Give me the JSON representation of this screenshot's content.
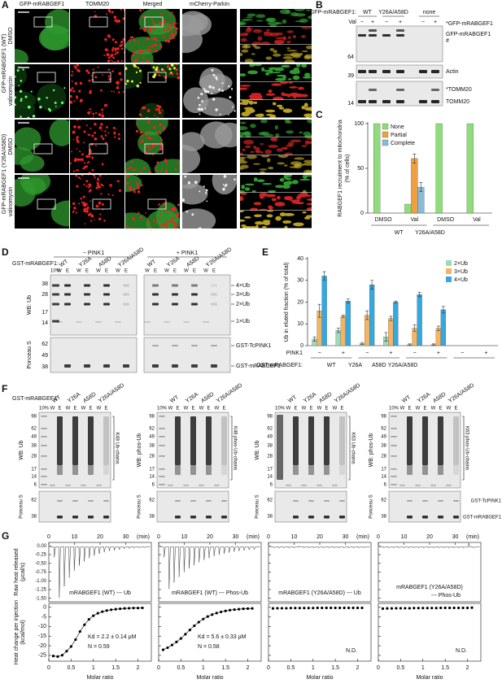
{
  "panel_labels": [
    "A",
    "B",
    "C",
    "D",
    "E",
    "F",
    "G"
  ],
  "panel_a": {
    "columns": [
      "GFP-mRABGEF1",
      "TOMM20",
      "Merged",
      "mCherry-Parkin"
    ],
    "treatments": [
      "DMSO",
      "valinomycin",
      "DMSO",
      "valinomycin"
    ],
    "groups": [
      "GFP-mRABGEF1 (WT)",
      "GFP-mRABGEF1 (Y26A/A58D)"
    ]
  },
  "panel_b": {
    "construct_label": "GFP-mRABGEF1:",
    "lanes": [
      "WT",
      "Y26A/A58D",
      "none"
    ],
    "treatment_label": "Val",
    "signs": [
      "−",
      "+",
      "−",
      "+",
      "−",
      "+"
    ],
    "markers": [
      64,
      39,
      14
    ],
    "bands": [
      "*GFP-mRABGEF1",
      "GFP-mRABGEF1",
      "#",
      "Actin",
      "*TOMM20",
      "TOMM20"
    ]
  },
  "chart_data": [
    {
      "type": "bar",
      "ylabel": [
        "RABGEF1 recruitment to mitochondria",
        "(% of cells)"
      ],
      "categories": [
        "DMSO",
        "Val",
        "DMSO",
        "Val"
      ],
      "groups": [
        "WT",
        "Y26A/A58D"
      ],
      "ylim": [
        0,
        100
      ],
      "yticks": [
        0,
        50,
        100
      ],
      "legend": "upper left",
      "series": [
        {
          "name": "None",
          "color": "#8fdc7b",
          "values": [
            100,
            10,
            100,
            100
          ],
          "errors": [
            null,
            null,
            null,
            null
          ]
        },
        {
          "name": "Partial",
          "color": "#f0a040",
          "values": [
            0,
            61,
            0,
            0
          ],
          "errors": [
            null,
            5,
            null,
            null
          ]
        },
        {
          "name": "Complete",
          "color": "#86bcd8",
          "values": [
            0,
            29,
            0,
            0
          ],
          "errors": [
            null,
            5,
            null,
            null
          ]
        }
      ]
    },
    {
      "type": "bar",
      "ylabel": "Ub in eluted fraction (% of total)",
      "treatment_label": "PINK1",
      "construct_label": "GST-mRABGEF1:",
      "categories": [
        "−",
        "+",
        "−",
        "+",
        "−",
        "+",
        "−",
        "+"
      ],
      "groups": [
        "WT",
        "Y26A",
        "A58D",
        "Y26A/A58D"
      ],
      "ylim": [
        0,
        40
      ],
      "yticks": [
        0,
        10,
        20,
        30,
        40
      ],
      "legend": "upper right",
      "series": [
        {
          "name": "2×Ub",
          "color": "#9ed9b8",
          "values": [
            3,
            7,
            1,
            4,
            0.5,
            0.5,
            0,
            0
          ],
          "errors": [
            1,
            1,
            0.5,
            2,
            0.3,
            0.3,
            null,
            null
          ]
        },
        {
          "name": "3×Ub",
          "color": "#f4b563",
          "values": [
            16,
            13.5,
            14,
            12.5,
            8,
            8,
            0,
            0
          ],
          "errors": [
            3,
            0.5,
            2,
            1,
            1.5,
            1,
            null,
            null
          ]
        },
        {
          "name": "4×Ub",
          "color": "#35a8e0",
          "values": [
            32,
            20.5,
            28,
            20,
            23.5,
            16.5,
            0,
            0
          ],
          "errors": [
            2,
            1,
            2,
            0.5,
            1,
            1.5,
            null,
            null
          ]
        }
      ]
    },
    {
      "type": "scatter",
      "title": [
        "mRABGEF1 (WT) --- Ub"
      ],
      "results": [
        "Kd = 2.2 ± 0.14 μM",
        "N = 0.59"
      ],
      "x": [
        0.1,
        0.2,
        0.3,
        0.4,
        0.5,
        0.6,
        0.7,
        0.8,
        0.9,
        1.0,
        1.1,
        1.2,
        1.3,
        1.4,
        1.5,
        1.6,
        1.7,
        1.8,
        1.9,
        2.0,
        2.1
      ],
      "values": [
        -25.3,
        -25.6,
        -24.9,
        -22.8,
        -20.4,
        -16.8,
        -12.6,
        -9.1,
        -6.3,
        -4.4,
        -3.1,
        -2.3,
        -1.7,
        -1.3,
        -1.0,
        -0.8,
        -0.6,
        -0.5,
        -0.4,
        -0.4,
        -0.3
      ],
      "xlim": [
        0,
        2.3
      ],
      "ylim": [
        -28,
        2
      ],
      "xticks": [
        0,
        0.5,
        1,
        1.5,
        2
      ],
      "yticks": [
        0,
        -5,
        -10,
        -15,
        -20,
        -25
      ]
    },
    {
      "type": "scatter",
      "title": [
        "mRABGEF1 (WT) --- Phos-Ub"
      ],
      "results": [
        "Kd = 5.6 ± 0.33 μM",
        "N = 0.58"
      ],
      "x": [
        0.1,
        0.2,
        0.3,
        0.4,
        0.5,
        0.6,
        0.7,
        0.8,
        0.9,
        1.0,
        1.1,
        1.2,
        1.3,
        1.4,
        1.5,
        1.6,
        1.7,
        1.8,
        1.9,
        2.0,
        2.1
      ],
      "values": [
        -22.1,
        -21.0,
        -19.6,
        -18.0,
        -16.2,
        -14.0,
        -11.8,
        -9.6,
        -7.7,
        -6.1,
        -4.8,
        -3.8,
        -3.0,
        -2.4,
        -1.9,
        -1.5,
        -1.2,
        -1.0,
        -0.8,
        -0.7,
        -0.6
      ],
      "xlim": [
        0,
        2.3
      ],
      "ylim": [
        -28,
        2
      ],
      "xticks": [
        0,
        0.5,
        1,
        1.5,
        2
      ],
      "yticks": [
        0,
        -5,
        -10,
        -15,
        -20,
        -25
      ]
    },
    {
      "type": "scatter",
      "title": [
        "mRABGEF1 (Y26A/A58D) --- Ub"
      ],
      "results": [
        "N.D."
      ],
      "x": [
        0.1,
        0.2,
        0.3,
        0.4,
        0.5,
        0.6,
        0.7,
        0.8,
        0.9,
        1.0,
        1.1,
        1.2,
        1.3,
        1.4,
        1.5,
        1.6,
        1.7,
        1.8,
        1.9,
        2.0,
        2.1
      ],
      "values": [
        -0.6,
        -0.5,
        -0.5,
        -0.5,
        -0.4,
        -0.4,
        -0.4,
        -0.4,
        -0.4,
        -0.4,
        -0.3,
        -0.3,
        -0.3,
        -0.3,
        -0.3,
        -0.3,
        -0.3,
        -0.3,
        -0.3,
        -0.3,
        -0.3
      ],
      "xlim": [
        0,
        2.3
      ],
      "ylim": [
        -28,
        2
      ],
      "xticks": [
        0,
        0.5,
        1,
        1.5,
        2
      ],
      "yticks": [
        0,
        -5,
        -10,
        -15,
        -20,
        -25
      ]
    },
    {
      "type": "scatter",
      "title": [
        "mRABGEF1 (Y26A/A58D)",
        "--- Phos-Ub"
      ],
      "results": [
        "N.D."
      ],
      "x": [
        0.1,
        0.2,
        0.3,
        0.4,
        0.5,
        0.6,
        0.7,
        0.8,
        0.9,
        1.0,
        1.1,
        1.2,
        1.3,
        1.4,
        1.5,
        1.6,
        1.7,
        1.8,
        1.9,
        2.0,
        2.1
      ],
      "values": [
        -0.7,
        -0.6,
        -0.6,
        -0.5,
        -0.5,
        -0.5,
        -0.5,
        -0.4,
        -0.4,
        -0.4,
        -0.4,
        -0.4,
        -0.4,
        -0.3,
        -0.3,
        -0.3,
        -0.3,
        -0.3,
        -0.3,
        -0.3,
        -0.2
      ],
      "xlim": [
        0,
        2.3
      ],
      "ylim": [
        -28,
        2
      ],
      "xticks": [
        0,
        0.5,
        1,
        1.5,
        2
      ],
      "yticks": [
        0,
        -5,
        -10,
        -15,
        -20,
        -25
      ]
    }
  ],
  "panel_d": {
    "pink1_labels": [
      "− PINK1",
      "+ PINK1"
    ],
    "construct_label": "GST-mRABGEF1:",
    "load_label": "10%",
    "lanes": [
      "WT",
      "Y26A",
      "A58D",
      "Y26A/A58D"
    ],
    "fractions": [
      "W",
      "E"
    ],
    "row_labels": [
      "WB: Ub",
      "Ponceau S"
    ],
    "markers_top": [
      38,
      28,
      17,
      14
    ],
    "markers_bottom": [
      62,
      49,
      38
    ],
    "bands": [
      "4×Ub",
      "3×Ub",
      "2×Ub",
      "1×Ub",
      "GST-TcPINK1",
      "GST-mRABGEF1"
    ]
  },
  "panel_f": {
    "construct_label": "GST-mRABGEF1:",
    "load_label": "10%",
    "lanes": [
      "WT",
      "Y26A",
      "A58D",
      "Y26A/A58D"
    ],
    "fractions": [
      "W",
      "E"
    ],
    "wb_labels": [
      "WB: Ub",
      "WB: phos-Ub",
      "WB: Ub",
      "WB: phos-Ub"
    ],
    "chain_labels": [
      "K48 Ub-chains",
      "K48 phos-Ub-chains",
      "K63 Ub-chains",
      "K63 phos-Ub-chains"
    ],
    "ponceau_label": "Ponceau S",
    "markers_top": [
      98,
      62,
      49,
      38,
      28,
      17,
      14,
      6
    ],
    "markers_bottom": [
      62,
      38
    ],
    "bands": [
      "GST-TcPINK1",
      "GST-mRABGEF1"
    ]
  },
  "panel_g": {
    "raw_ylabel": [
      "Raw heat released",
      "(μcal/s)"
    ],
    "fit_ylabel": [
      "Heat change per injection",
      "(kcal/mol)"
    ],
    "xlabel": "Molar ratio",
    "raw": {
      "xlim": [
        0,
        40
      ],
      "xticks": [
        0,
        10,
        20,
        30
      ],
      "xunit": "(min)",
      "ylim": [
        -1.6,
        0.1
      ],
      "yticks": [
        {
          "value": 0,
          "label": "0.00"
        },
        -0.25,
        {
          "value": -0.5,
          "label": "-0.50"
        },
        -0.75,
        {
          "value": -1,
          "label": "-1.00"
        },
        -1.25,
        {
          "value": -1.5,
          "label": "-1.50"
        }
      ]
    }
  }
}
